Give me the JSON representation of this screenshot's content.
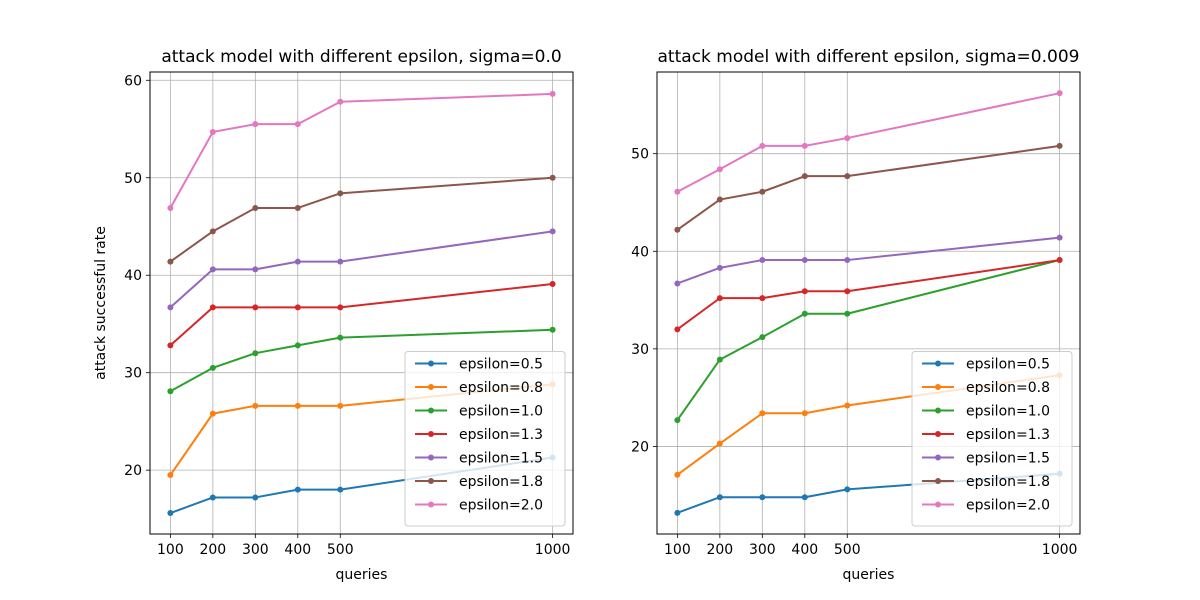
{
  "chart_data": [
    {
      "type": "line",
      "title": "attack model with different epsilon, sigma=0.0",
      "xlabel": "queries",
      "ylabel": "attack successful rate",
      "x": [
        100,
        200,
        300,
        400,
        500,
        1000
      ],
      "xticks": [
        100,
        200,
        300,
        400,
        500,
        1000
      ],
      "yticks": [
        20,
        30,
        40,
        50,
        60
      ],
      "xlim": [
        52,
        1048
      ],
      "ylim": [
        13.45,
        60.85
      ],
      "grid": true,
      "legend_position": "lower right",
      "series": [
        {
          "name": "epsilon=0.5",
          "color": "#1f77b4",
          "values": [
            15.6,
            17.2,
            17.2,
            18.0,
            18.0,
            21.3
          ]
        },
        {
          "name": "epsilon=0.8",
          "color": "#ff7f0e",
          "values": [
            19.5,
            25.8,
            26.6,
            26.6,
            26.6,
            28.8
          ]
        },
        {
          "name": "epsilon=1.0",
          "color": "#2ca02c",
          "values": [
            28.1,
            30.5,
            32.0,
            32.8,
            33.6,
            34.4
          ]
        },
        {
          "name": "epsilon=1.3",
          "color": "#d62728",
          "values": [
            32.8,
            36.7,
            36.7,
            36.7,
            36.7,
            39.1
          ]
        },
        {
          "name": "epsilon=1.5",
          "color": "#9467bd",
          "values": [
            36.7,
            40.6,
            40.6,
            41.4,
            41.4,
            44.5
          ]
        },
        {
          "name": "epsilon=1.8",
          "color": "#8c564b",
          "values": [
            41.4,
            44.5,
            46.9,
            46.9,
            48.4,
            50.0
          ]
        },
        {
          "name": "epsilon=2.0",
          "color": "#e377c2",
          "values": [
            46.9,
            54.7,
            55.5,
            55.5,
            57.8,
            58.6
          ]
        }
      ]
    },
    {
      "type": "line",
      "title": "attack model with different epsilon, sigma=0.009",
      "xlabel": "queries",
      "ylabel": "",
      "x": [
        100,
        200,
        300,
        400,
        500,
        1000
      ],
      "xticks": [
        100,
        200,
        300,
        400,
        500,
        1000
      ],
      "yticks": [
        20,
        30,
        40,
        50
      ],
      "xlim": [
        52,
        1048
      ],
      "ylim": [
        11.03,
        58.37
      ],
      "grid": true,
      "legend_position": "lower right",
      "series": [
        {
          "name": "epsilon=0.5",
          "color": "#1f77b4",
          "values": [
            13.2,
            14.8,
            14.8,
            14.8,
            15.6,
            17.2
          ]
        },
        {
          "name": "epsilon=0.8",
          "color": "#ff7f0e",
          "values": [
            17.1,
            20.3,
            23.4,
            23.4,
            24.2,
            27.3
          ]
        },
        {
          "name": "epsilon=1.0",
          "color": "#2ca02c",
          "values": [
            22.7,
            28.9,
            31.2,
            33.6,
            33.6,
            39.1
          ]
        },
        {
          "name": "epsilon=1.3",
          "color": "#d62728",
          "values": [
            32.0,
            35.2,
            35.2,
            35.9,
            35.9,
            39.1
          ]
        },
        {
          "name": "epsilon=1.5",
          "color": "#9467bd",
          "values": [
            36.7,
            38.3,
            39.1,
            39.1,
            39.1,
            41.4
          ]
        },
        {
          "name": "epsilon=1.8",
          "color": "#8c564b",
          "values": [
            42.2,
            45.3,
            46.1,
            47.7,
            47.7,
            50.8
          ]
        },
        {
          "name": "epsilon=2.0",
          "color": "#e377c2",
          "values": [
            46.1,
            48.4,
            50.8,
            50.8,
            51.6,
            56.2
          ]
        }
      ]
    }
  ]
}
